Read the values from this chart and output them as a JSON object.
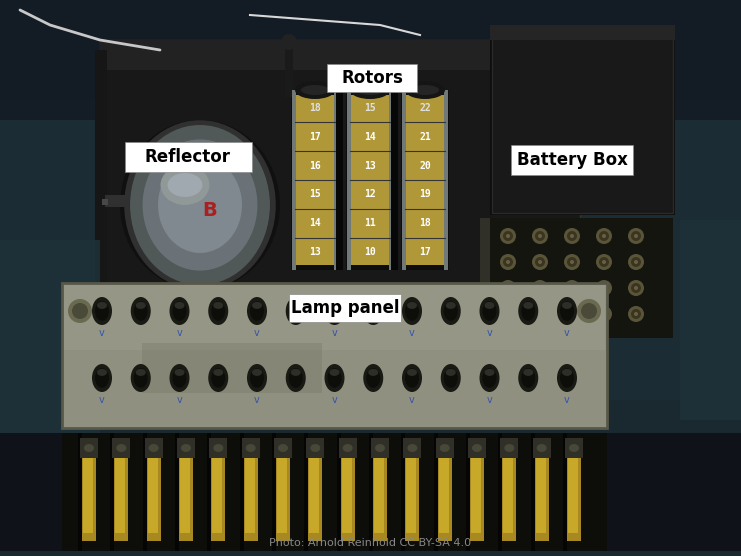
{
  "caption": "Photo: Arnold Reinhold CC BY-SA 4.0",
  "bg_top": "#1a2a30",
  "bg_mid": "#1e3038",
  "bg_bot": "#243040",
  "machine_dark": "#111111",
  "reflector_silver": "#707880",
  "reflector_mid": "#808890",
  "reflector_inner": "#909aa0",
  "rotor_gold": "#c0aa48",
  "rotor_silver": "#909898",
  "rotor_dark": "#181818",
  "rotor_nums": [
    [
      "18",
      "17",
      "16",
      "15",
      "14",
      "13"
    ],
    [
      "15",
      "14",
      "13",
      "12",
      "11",
      "10"
    ],
    [
      "22",
      "21",
      "20",
      "19",
      "18",
      "17"
    ]
  ],
  "lamp_silver": "#a8a890",
  "lamp_shadow": "#787868",
  "battery_dark": "#222222",
  "brass_color": "#b89828",
  "brass_light": "#d0b030",
  "wire_color": "#c8c8c8",
  "label_fontsize": 12,
  "label_bold": true,
  "reflector_label": "Reflector",
  "rotors_label": "Rotors",
  "battery_label": "Battery Box",
  "lamp_label": "Lamp panel"
}
